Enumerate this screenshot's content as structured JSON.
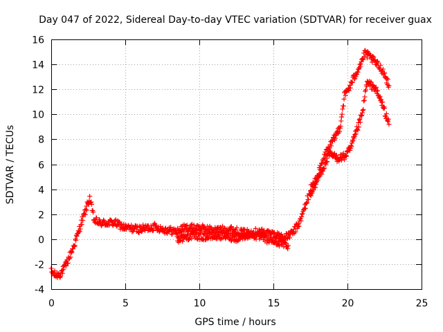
{
  "chart_data": {
    "type": "scatter",
    "title": "Day 047 of 2022, Sidereal Day-to-day VTEC variation (SDTVAR) for receiver guax",
    "xlabel": "GPS time / hours",
    "ylabel": "SDTVAR / TECUs",
    "xlim": [
      0,
      25
    ],
    "ylim": [
      -4,
      16
    ],
    "xticks": [
      "0",
      "5",
      "10",
      "15",
      "20",
      "25"
    ],
    "yticks": [
      "-4",
      "-2",
      "0",
      "2",
      "4",
      "6",
      "8",
      "10",
      "12",
      "14",
      "16"
    ],
    "grid": true,
    "marker": "plus",
    "color": "#ff0000",
    "trend": [
      [
        0.0,
        -2.6
      ],
      [
        0.3,
        -2.9
      ],
      [
        0.6,
        -2.8
      ],
      [
        0.9,
        -2.3
      ],
      [
        1.2,
        -1.5
      ],
      [
        1.5,
        -0.6
      ],
      [
        1.8,
        0.4
      ],
      [
        2.0,
        1.2
      ],
      [
        2.3,
        2.2
      ],
      [
        2.6,
        3.3
      ],
      [
        2.9,
        1.5
      ],
      [
        3.3,
        1.3
      ],
      [
        3.8,
        1.3
      ],
      [
        4.3,
        1.3
      ],
      [
        5.0,
        0.9
      ],
      [
        6.0,
        0.8
      ],
      [
        7.0,
        1.0
      ],
      [
        7.5,
        0.8
      ],
      [
        8.5,
        0.6
      ],
      [
        9.0,
        0.9
      ],
      [
        10.0,
        0.9
      ],
      [
        11.0,
        0.7
      ],
      [
        12.0,
        0.8
      ],
      [
        13.0,
        0.5
      ],
      [
        14.0,
        0.6
      ],
      [
        15.0,
        0.4
      ],
      [
        15.8,
        0.1
      ],
      [
        16.3,
        0.5
      ],
      [
        16.8,
        1.4
      ],
      [
        17.3,
        3.2
      ],
      [
        17.8,
        4.3
      ],
      [
        18.3,
        5.6
      ],
      [
        18.8,
        6.8
      ],
      [
        19.3,
        6.5
      ],
      [
        19.8,
        6.6
      ],
      [
        20.2,
        7.2
      ],
      [
        20.6,
        8.6
      ],
      [
        21.0,
        10.0
      ],
      [
        21.3,
        12.5
      ],
      [
        21.8,
        12.2
      ],
      [
        22.3,
        11.0
      ],
      [
        22.8,
        9.2
      ]
    ],
    "upper_branch": [
      [
        17.5,
        4.0
      ],
      [
        18.0,
        5.1
      ],
      [
        18.5,
        6.8
      ],
      [
        19.0,
        7.8
      ],
      [
        19.5,
        9.0
      ],
      [
        19.8,
        11.5
      ],
      [
        20.2,
        12.3
      ],
      [
        21.2,
        14.9
      ],
      [
        21.6,
        14.5
      ],
      [
        22.0,
        14.0
      ],
      [
        22.4,
        13.5
      ],
      [
        22.8,
        12.3
      ]
    ],
    "lower_branch": [
      [
        8.5,
        0.0
      ],
      [
        9.5,
        0.3
      ],
      [
        10.5,
        0.2
      ],
      [
        11.5,
        0.3
      ],
      [
        12.5,
        0.1
      ],
      [
        13.5,
        0.4
      ],
      [
        14.5,
        0.0
      ],
      [
        15.5,
        -0.3
      ],
      [
        16.0,
        -0.5
      ]
    ]
  }
}
